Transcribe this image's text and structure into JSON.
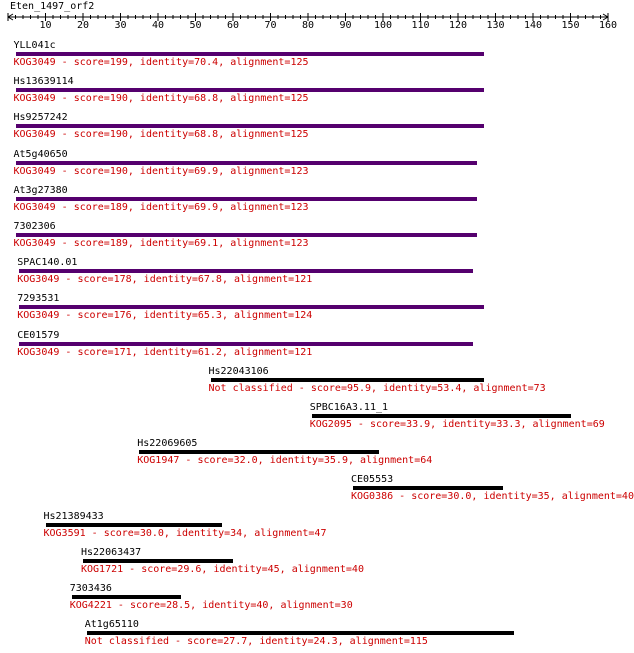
{
  "query": {
    "name": "Eten_1497_orf2",
    "axis_min": 0,
    "axis_max": 160,
    "tick_step": 10,
    "tick_labels": [
      "10",
      "20",
      "30",
      "40",
      "50",
      "60",
      "70",
      "80",
      "90",
      "100",
      "110",
      "120",
      "130",
      "140",
      "150",
      "160"
    ]
  },
  "colors": {
    "kog_bar": "#55006e",
    "other_bar": "#000000",
    "desc_text": "#cc0000",
    "label_text": "#000000"
  },
  "hits": [
    {
      "name": "YLL041c",
      "start": 2,
      "end": 127,
      "desc": "KOG3049 - score=199, identity=70.4, alignment=125",
      "kog": true
    },
    {
      "name": "Hs13639114",
      "start": 2,
      "end": 127,
      "desc": "KOG3049 - score=190, identity=68.8, alignment=125",
      "kog": true
    },
    {
      "name": "Hs9257242",
      "start": 2,
      "end": 127,
      "desc": "KOG3049 - score=190, identity=68.8, alignment=125",
      "kog": true
    },
    {
      "name": "At5g40650",
      "start": 2,
      "end": 125,
      "desc": "KOG3049 - score=190, identity=69.9, alignment=123",
      "kog": true
    },
    {
      "name": "At3g27380",
      "start": 2,
      "end": 125,
      "desc": "KOG3049 - score=189, identity=69.9, alignment=123",
      "kog": true
    },
    {
      "name": "7302306",
      "start": 2,
      "end": 125,
      "desc": "KOG3049 - score=189, identity=69.1, alignment=123",
      "kog": true
    },
    {
      "name": "SPAC140.01",
      "start": 3,
      "end": 124,
      "desc": "KOG3049 - score=178, identity=67.8, alignment=121",
      "kog": true
    },
    {
      "name": "7293531",
      "start": 3,
      "end": 127,
      "desc": "KOG3049 - score=176, identity=65.3, alignment=124",
      "kog": true
    },
    {
      "name": "CE01579",
      "start": 3,
      "end": 124,
      "desc": "KOG3049 - score=171, identity=61.2, alignment=121",
      "kog": true
    },
    {
      "name": "Hs22043106",
      "start": 54,
      "end": 127,
      "desc": "Not classified - score=95.9, identity=53.4, alignment=73",
      "kog": false
    },
    {
      "name": "SPBC16A3.11_1",
      "start": 81,
      "end": 150,
      "desc": "KOG2095 - score=33.9, identity=33.3, alignment=69",
      "kog": false
    },
    {
      "name": "Hs22069605",
      "start": 35,
      "end": 99,
      "desc": "KOG1947 - score=32.0, identity=35.9, alignment=64",
      "kog": false
    },
    {
      "name": "CE05553",
      "start": 92,
      "end": 132,
      "desc": "KOG0386 - score=30.0, identity=35, alignment=40",
      "kog": false
    },
    {
      "name": "Hs21389433",
      "start": 10,
      "end": 57,
      "desc": "KOG3591 - score=30.0, identity=34, alignment=47",
      "kog": false
    },
    {
      "name": "Hs22063437",
      "start": 20,
      "end": 60,
      "desc": "KOG1721 - score=29.6, identity=45, alignment=40",
      "kog": false
    },
    {
      "name": "7303436",
      "start": 17,
      "end": 46,
      "desc": "KOG4221 - score=28.5, identity=40, alignment=30",
      "kog": false
    },
    {
      "name": "At1g65110",
      "start": 21,
      "end": 135,
      "desc": "Not classified - score=27.7, identity=24.3, alignment=115",
      "kog": false
    }
  ]
}
